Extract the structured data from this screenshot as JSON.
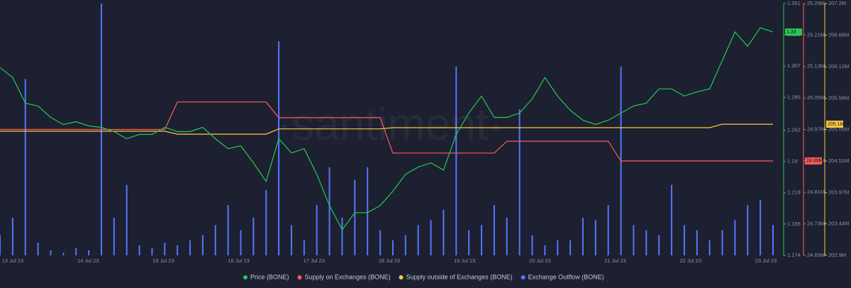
{
  "chart_data": {
    "type": "line",
    "watermark": "·santiment·",
    "x_labels": [
      "13 Jul 23",
      "14 Jul 23",
      "15 Jul 23",
      "16 Jul 23",
      "17 Jul 23",
      "18 Jul 23",
      "19 Jul 23",
      "20 Jul 23",
      "21 Jul 23",
      "22 Jul 23",
      "23 Jul 23"
    ],
    "legend": "bottom",
    "ylim": [
      1.174,
      1.351
    ],
    "yticks": [
      1.174,
      1.196,
      1.218,
      1.24,
      1.262,
      1.285,
      1.307,
      1.329,
      1.351
    ],
    "y2lim": [
      24.65,
      25.29
    ],
    "y2ticks": [
      {
        "value": 24.65,
        "label": "24.65M"
      },
      {
        "value": 24.73,
        "label": "24.73M"
      },
      {
        "value": 24.81,
        "label": "24.81M"
      },
      {
        "value": 24.89,
        "label": "24.89M"
      },
      {
        "value": 24.97,
        "label": "24.97M"
      },
      {
        "value": 25.05,
        "label": "25.05M"
      },
      {
        "value": 25.13,
        "label": "25.13M"
      },
      {
        "value": 25.21,
        "label": "25.21M"
      },
      {
        "value": 25.29,
        "label": "25.29M"
      }
    ],
    "y3lim": [
      202.9,
      207.2
    ],
    "y3ticks": [
      {
        "value": 202.9,
        "label": "202.9M"
      },
      {
        "value": 203.44,
        "label": "203.44M"
      },
      {
        "value": 203.97,
        "label": "203.97M"
      },
      {
        "value": 204.51,
        "label": "204.51M"
      },
      {
        "value": 205.05,
        "label": "205.05M"
      },
      {
        "value": 205.58,
        "label": "205.58M"
      },
      {
        "value": 206.12,
        "label": "206.12M"
      },
      {
        "value": 206.66,
        "label": "206.66M"
      },
      {
        "value": 207.2,
        "label": "207.2M"
      }
    ],
    "y4lim": [
      0,
      100
    ],
    "series": [
      {
        "name": "Price (BONE)",
        "color": "#26c953",
        "axis": "y",
        "style": "line",
        "last_label": "1.33",
        "values": [
          1.306,
          1.299,
          1.281,
          1.279,
          1.271,
          1.266,
          1.268,
          1.265,
          1.264,
          1.261,
          1.256,
          1.259,
          1.259,
          1.264,
          1.261,
          1.261,
          1.264,
          1.256,
          1.249,
          1.251,
          1.239,
          1.226,
          1.256,
          1.246,
          1.249,
          1.231,
          1.209,
          1.192,
          1.204,
          1.204,
          1.209,
          1.219,
          1.231,
          1.236,
          1.239,
          1.234,
          1.259,
          1.274,
          1.286,
          1.271,
          1.271,
          1.274,
          1.284,
          1.299,
          1.286,
          1.276,
          1.269,
          1.266,
          1.269,
          1.274,
          1.279,
          1.281,
          1.291,
          1.291,
          1.286,
          1.289,
          1.291,
          1.311,
          1.331,
          1.321,
          1.334,
          1.331
        ]
      },
      {
        "name": "Supply on Exchanges (BONE)",
        "color": "#ff5b5b",
        "axis": "y2",
        "style": "line",
        "last_label": "24.89M",
        "values": [
          24.97,
          24.97,
          24.97,
          24.97,
          24.97,
          24.97,
          24.97,
          24.97,
          24.97,
          24.97,
          24.97,
          24.97,
          24.97,
          24.97,
          25.04,
          25.04,
          25.04,
          25.04,
          25.04,
          25.04,
          25.04,
          25.04,
          25.0,
          25.0,
          25.0,
          25.0,
          25.0,
          25.0,
          25.0,
          25.0,
          25.0,
          24.91,
          24.91,
          24.91,
          24.91,
          24.91,
          24.91,
          24.91,
          24.91,
          24.91,
          24.94,
          24.94,
          24.94,
          24.94,
          24.94,
          24.94,
          24.94,
          24.94,
          24.94,
          24.89,
          24.89,
          24.89,
          24.89,
          24.89,
          24.89,
          24.89,
          24.89,
          24.89,
          24.89,
          24.89,
          24.89,
          24.89
        ]
      },
      {
        "name": "Supply outside of Exchanges (BONE)",
        "color": "#ffc940",
        "axis": "y3",
        "style": "line",
        "last_label": "205.1M",
        "values": [
          205.02,
          205.02,
          205.02,
          205.02,
          205.02,
          205.02,
          205.02,
          205.02,
          205.02,
          205.02,
          205.02,
          205.02,
          205.02,
          205.02,
          204.97,
          204.97,
          204.97,
          204.97,
          204.97,
          204.97,
          204.97,
          204.97,
          205.06,
          205.06,
          205.06,
          205.06,
          205.06,
          205.06,
          205.06,
          205.06,
          205.06,
          205.08,
          205.08,
          205.08,
          205.08,
          205.08,
          205.08,
          205.08,
          205.08,
          205.08,
          205.08,
          205.08,
          205.08,
          205.08,
          205.08,
          205.08,
          205.08,
          205.08,
          205.08,
          205.08,
          205.08,
          205.08,
          205.08,
          205.08,
          205.08,
          205.08,
          205.08,
          205.14,
          205.14,
          205.14,
          205.14,
          205.14
        ]
      },
      {
        "name": "Exchange Outflow (BONE)",
        "color": "#5277ff",
        "axis": "y4",
        "style": "bar",
        "values": [
          8,
          15,
          70,
          5,
          2,
          1,
          3,
          2,
          100,
          15,
          28,
          4,
          3,
          5,
          4,
          6,
          8,
          12,
          20,
          10,
          15,
          26,
          85,
          12,
          6,
          20,
          35,
          15,
          30,
          35,
          10,
          6,
          8,
          12,
          14,
          18,
          75,
          10,
          12,
          20,
          15,
          58,
          8,
          4,
          6,
          6,
          15,
          14,
          20,
          75,
          12,
          10,
          8,
          28,
          12,
          10,
          6,
          10,
          14,
          20,
          22,
          12
        ]
      }
    ]
  }
}
